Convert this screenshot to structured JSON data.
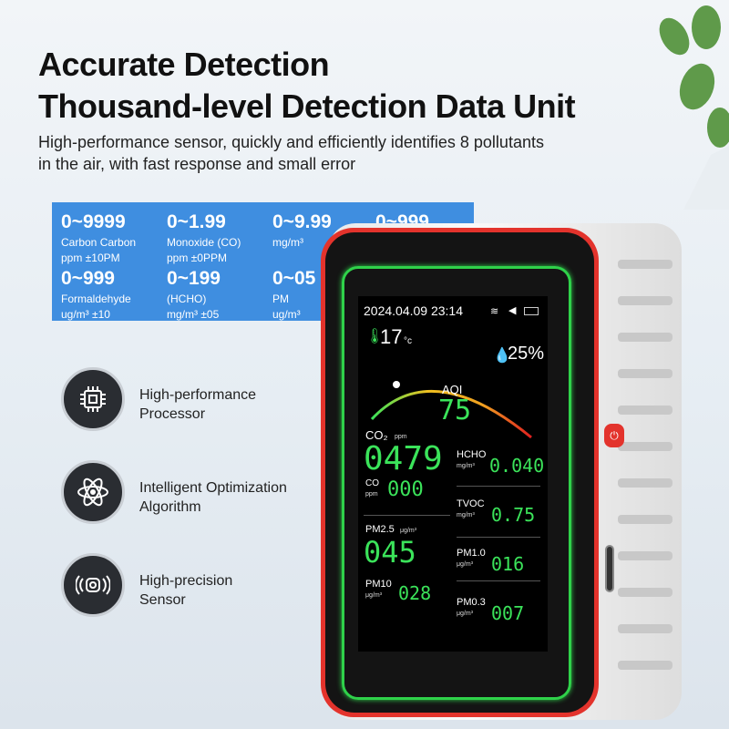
{
  "headline": {
    "line1": "Accurate Detection",
    "line2": "Thousand-level Detection Data Unit",
    "subtitle": "High-performance sensor, quickly and efficiently identifies 8 pollutants in the air, with fast response and small error"
  },
  "ranges": [
    {
      "range": "0~9999",
      "label": "Carbon Carbon",
      "unit": "ppm ±10PM"
    },
    {
      "range": "0~1.99",
      "label": "Monoxide (CO)",
      "unit": "ppm ±0PPM"
    },
    {
      "range": "0~9.99",
      "label": "",
      "unit": "mg/m³"
    },
    {
      "range": "0~999",
      "label": "",
      "unit": ""
    },
    {
      "range": "0~999",
      "label": "Formaldehyde",
      "unit": "ug/m³ ±10"
    },
    {
      "range": "0~199",
      "label": "(HCHO)",
      "unit": "mg/m³ ±05"
    },
    {
      "range": "0~05",
      "label": "PM",
      "unit": "ug/m³"
    }
  ],
  "features": [
    {
      "icon": "processor-chip-icon",
      "label": "High-performance Processor",
      "l1": "High-performance",
      "l2": "Processor"
    },
    {
      "icon": "atom-icon",
      "label": "Intelligent Optimization Algorithm",
      "l1": "Intelligent Optimization",
      "l2": "Algorithm"
    },
    {
      "icon": "sensor-icon",
      "label": "High-precision Sensor",
      "l1": "High-precision",
      "l2": "Sensor"
    }
  ],
  "screen": {
    "datetime": "2024.04.09 23:14",
    "temperature": "17",
    "temp_unit": "°c",
    "humidity": "25%",
    "aqi_label": "AQI",
    "aqi": "75",
    "co2": {
      "label": "CO₂",
      "unit": "ppm",
      "value": "0479"
    },
    "co": {
      "label": "CO",
      "unit": "ppm",
      "value": "000"
    },
    "hcho": {
      "label": "HCHO",
      "unit": "mg/m³",
      "value": "0.040"
    },
    "tvoc": {
      "label": "TVOC",
      "unit": "mg/m³",
      "value": "0.75"
    },
    "pm25": {
      "label": "PM2.5",
      "unit": "μg/m³",
      "value": "045"
    },
    "pm10": {
      "label": "PM10",
      "unit": "μg/m³",
      "value": "028"
    },
    "pm1": {
      "label": "PM1.0",
      "unit": "μg/m³",
      "value": "016"
    },
    "pm03": {
      "label": "PM0.3",
      "unit": "μg/m³",
      "value": "007"
    }
  },
  "colors": {
    "accent_blue": "#3f8ee0",
    "device_red": "#e3332c",
    "display_green": "#3be35a"
  }
}
